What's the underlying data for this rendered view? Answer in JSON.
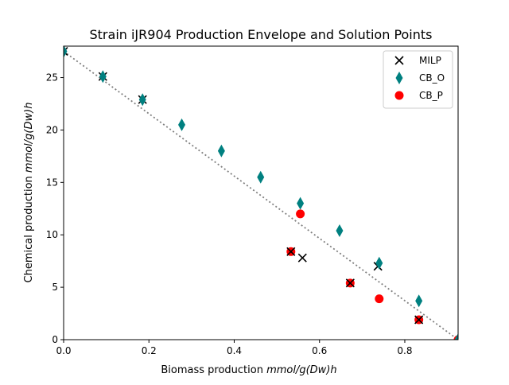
{
  "chart_data": {
    "type": "scatter",
    "title": "Strain iJR904 Production Envelope and Solution Points",
    "xlabel_prefix": "Biomass production ",
    "xlabel_unit": "mmol/g(Dw)h",
    "ylabel_prefix": "Chemical production ",
    "ylabel_unit": "mmol/g(Dw)h",
    "xlim": [
      0,
      0.925
    ],
    "ylim": [
      0,
      28
    ],
    "x_ticks": [
      0,
      0.2,
      0.4,
      0.6,
      0.8
    ],
    "x_tick_labels": [
      "0.0",
      "0.2",
      "0.4",
      "0.6",
      "0.8"
    ],
    "y_ticks": [
      0,
      5,
      10,
      15,
      20,
      25
    ],
    "y_tick_labels": [
      "0",
      "5",
      "10",
      "15",
      "20",
      "25"
    ],
    "grid": false,
    "legend_position": "top-right",
    "envelope": {
      "style": "dotted",
      "color": "#808080",
      "x": [
        0,
        0.925
      ],
      "y": [
        27.5,
        0
      ]
    },
    "series": [
      {
        "name": "CB_P",
        "marker": "circle",
        "color": "#ff0000",
        "x": [
          0.533,
          0.555,
          0.672,
          0.74,
          0.833,
          0.925
        ],
        "y": [
          8.4,
          12.0,
          5.4,
          3.9,
          1.9,
          0.0
        ]
      },
      {
        "name": "MILP",
        "marker": "x",
        "color": "#000000",
        "x": [
          0.0,
          0.092,
          0.185,
          0.533,
          0.56,
          0.672,
          0.737,
          0.833
        ],
        "y": [
          27.5,
          25.1,
          22.9,
          8.4,
          7.8,
          5.4,
          7.0,
          1.9
        ]
      },
      {
        "name": "CB_O",
        "marker": "diamond",
        "color": "#008080",
        "x": [
          0.0,
          0.092,
          0.185,
          0.277,
          0.37,
          0.462,
          0.555,
          0.647,
          0.74,
          0.833,
          0.925
        ],
        "y": [
          27.5,
          25.1,
          22.9,
          20.5,
          18.0,
          15.5,
          13.0,
          10.4,
          7.3,
          3.7,
          0.0
        ]
      }
    ],
    "legend": [
      {
        "name": "MILP",
        "marker": "x",
        "color": "#000000"
      },
      {
        "name": "CB_O",
        "marker": "diamond",
        "color": "#008080"
      },
      {
        "name": "CB_P",
        "marker": "circle",
        "color": "#ff0000"
      }
    ]
  }
}
